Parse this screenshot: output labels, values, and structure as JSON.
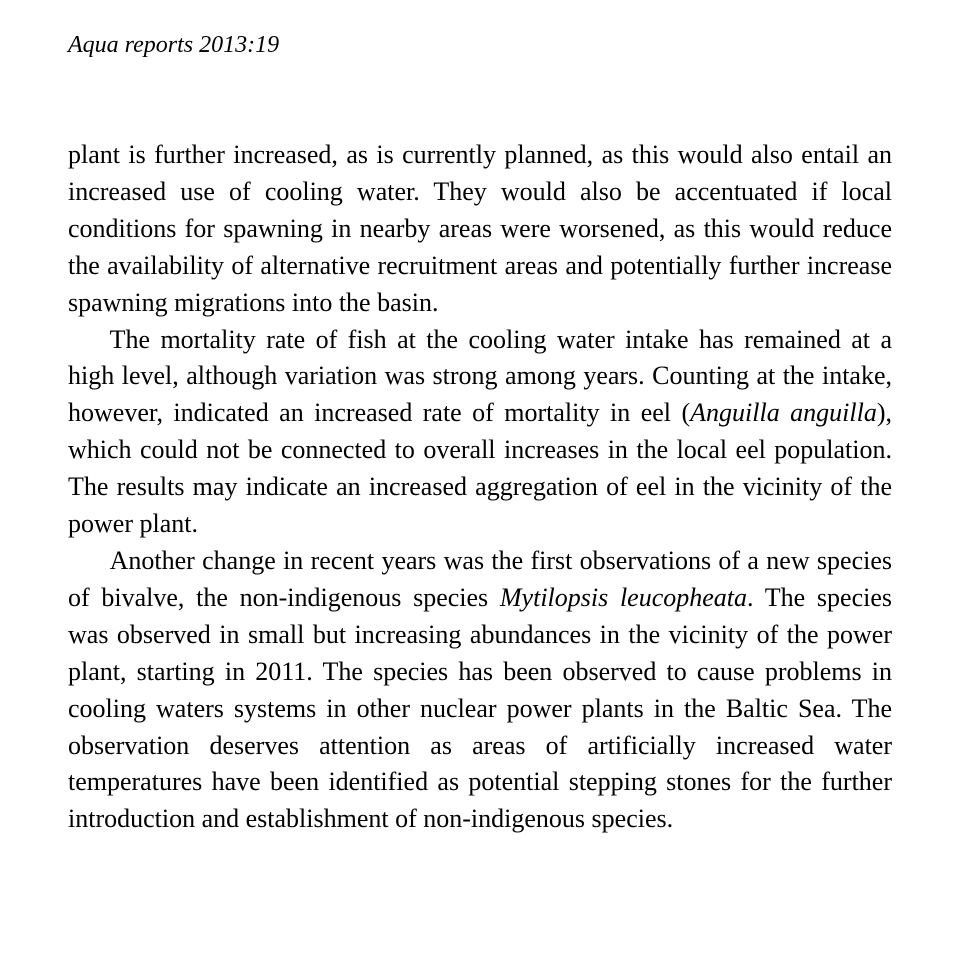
{
  "running_head": "Aqua reports 2013:19",
  "paragraphs": {
    "p1_a": "plant is further increased, as is currently planned, as this would also entail an increased use of cooling water. They would also be accentuated if local conditions for spawning in nearby areas were worsened, as this would reduce the availability of alternative recruitment areas and potentially further increase spawning migrations into the basin.",
    "p2_a": "The mortality rate of fish at the cooling water intake has remained at a high level, although variation was strong among years. Counting at the intake, however, indicated an increased rate of mortality in eel (",
    "p2_b_ital": "Anguilla anguilla",
    "p2_c": "), which could not be connected to overall increases in the local eel population. The results may indicate an increased aggregation of eel in the vicinity of the power plant.",
    "p3_a": "Another change in recent years was the first observations of a new species of bivalve, the non-indigenous species ",
    "p3_b_ital": "Mytilopsis leucopheata",
    "p3_c": ". The species was observed in small but increasing abundances in the vicinity of the power plant, starting in 2011. The species has been observed to cause problems in cooling waters systems in other nuclear power plants in the Baltic Sea. The observation deserves attention as areas of artificially increased water temperatures have been identified as potential stepping stones for the further introduction and establishment of non-indigenous species."
  }
}
